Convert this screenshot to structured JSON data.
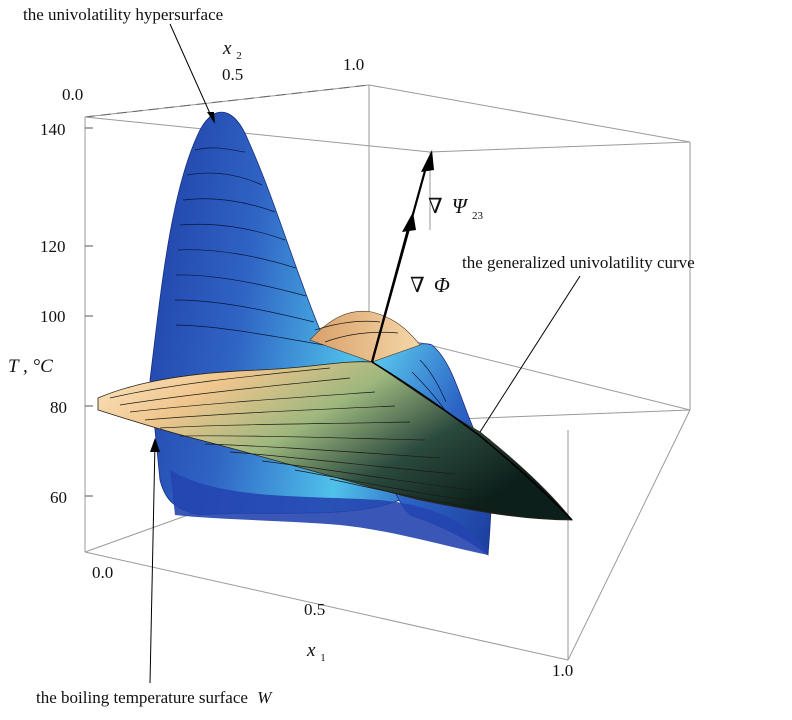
{
  "annotations": {
    "hypersurface": "the univolatility hypersurface",
    "generalized_curve": "the generalized  univolatility curve",
    "boiling_surface": "the boiling temperature surface",
    "boiling_surface_symbol": "W"
  },
  "gradients": {
    "psi_nabla": "∇",
    "psi_symbol": "Ψ",
    "psi_subscript": "23",
    "phi_nabla": "∇",
    "phi_symbol": "Φ"
  },
  "axes": {
    "x1": {
      "symbol": "x",
      "subscript": "1",
      "ticks": [
        "0.0",
        "0.5",
        "1.0"
      ]
    },
    "x2": {
      "symbol": "x",
      "subscript": "2",
      "ticks": [
        "0.0",
        "0.5",
        "1.0"
      ]
    },
    "T": {
      "label": "T , °C",
      "ticks": [
        "140",
        "120",
        "100",
        "80",
        "60"
      ]
    }
  },
  "colors": {
    "univolatility_surface": "#2f63c4",
    "univolatility_highlight": "#4fc2ea",
    "boiling_surface_warm": "#f0c68e",
    "boiling_surface_dark": "#0c1f1a",
    "box_lines": "#9a9a9a"
  }
}
